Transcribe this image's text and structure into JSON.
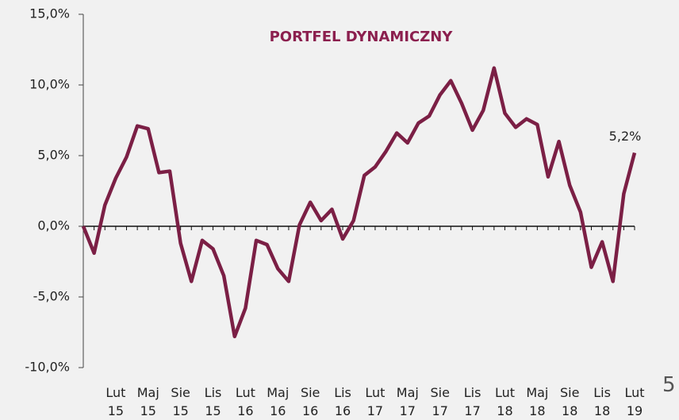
{
  "chart_data": {
    "type": "line",
    "title": "PORTFEL DYNAMICZNY",
    "annotation": "5,2%",
    "categories": [
      null,
      null,
      null,
      "Lut 15",
      null,
      null,
      "Maj 15",
      null,
      null,
      "Sie 15",
      null,
      null,
      "Lis 15",
      null,
      null,
      "Lut 16",
      null,
      null,
      "Maj 16",
      null,
      null,
      "Sie 16",
      null,
      null,
      "Lis 16",
      null,
      null,
      "Lut 17",
      null,
      null,
      "Maj 17",
      null,
      null,
      "Sie 17",
      null,
      null,
      "Lis 17",
      null,
      null,
      "Lut 18",
      null,
      null,
      "Maj 18",
      null,
      null,
      "Sie 18",
      null,
      null,
      "Lis 18",
      null,
      null,
      "Lut 19"
    ],
    "series": [
      {
        "name": "PORTFEL DYNAMICZNY",
        "color": "#7b1f45",
        "values": [
          0,
          -1.9,
          1.5,
          3.4,
          4.9,
          7.1,
          6.9,
          3.8,
          3.9,
          -1.2,
          -3.9,
          -1.0,
          -1.6,
          -3.5,
          -7.8,
          -5.8,
          -1.0,
          -1.3,
          -3.0,
          -3.9,
          0.1,
          1.7,
          0.4,
          1.2,
          -0.9,
          0.4,
          3.6,
          4.2,
          5.3,
          6.6,
          5.9,
          7.3,
          7.8,
          9.3,
          10.3,
          8.7,
          6.8,
          8.2,
          11.2,
          8.0,
          7.0,
          7.6,
          7.2,
          3.5,
          6.0,
          2.9,
          1.0,
          -2.9,
          -1.1,
          -3.9,
          2.3,
          5.2
        ]
      }
    ],
    "ylim": [
      -10,
      15
    ],
    "yticks": [
      {
        "value": -10,
        "label": "-10,0%"
      },
      {
        "value": -5,
        "label": "-5,0%"
      },
      {
        "value": 0,
        "label": "0,0%"
      },
      {
        "value": 5,
        "label": "5,0%"
      },
      {
        "value": 10,
        "label": "10,0%"
      },
      {
        "value": 15,
        "label": "15,0%"
      }
    ],
    "page_number": "5"
  }
}
